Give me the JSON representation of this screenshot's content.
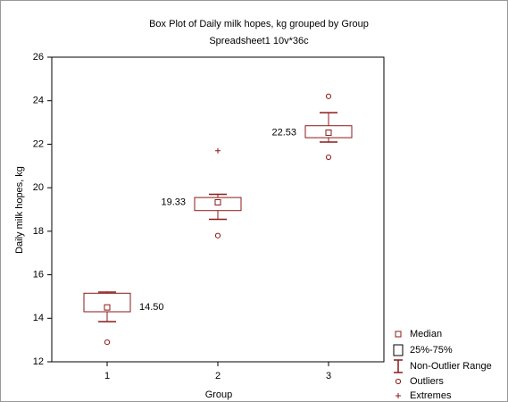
{
  "chart_data": {
    "type": "box",
    "title": "Box Plot of Daily milk hopes, kg grouped by  Group",
    "subtitle": "Spreadsheet1 10v*36c",
    "x_label": "Group",
    "y_label": "Daily milk hopes, kg",
    "categories": [
      "1",
      "2",
      "3"
    ],
    "medians": [
      14.5,
      19.33,
      22.53
    ],
    "median_labels": [
      "14.50",
      "19.33",
      "22.53"
    ],
    "q1": [
      14.3,
      18.95,
      22.3
    ],
    "q3": [
      15.15,
      19.55,
      22.85
    ],
    "whisker_low": [
      13.85,
      18.55,
      22.1
    ],
    "whisker_high": [
      15.2,
      19.7,
      23.45
    ],
    "outliers": [
      [
        12.9
      ],
      [
        17.8
      ],
      [
        24.2,
        21.4
      ]
    ],
    "extremes": [
      [],
      [
        21.7
      ],
      []
    ],
    "color": "#8b1a1a",
    "ylim": [
      12,
      26
    ],
    "yticks": [
      12,
      14,
      16,
      18,
      20,
      22,
      24,
      26
    ],
    "grid": false,
    "legend": [
      "Median",
      "25%-75%",
      "Non-Outlier Range",
      "Outliers",
      "Extremes"
    ],
    "legend_position": "lower right"
  }
}
